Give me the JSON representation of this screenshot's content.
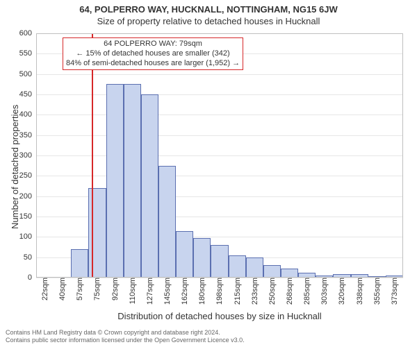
{
  "header": {
    "line1": "64, POLPERRO WAY, HUCKNALL, NOTTINGHAM, NG15 6JW",
    "line2": "Size of property relative to detached houses in Hucknall",
    "line1_fontsize": 13,
    "line2_fontsize": 13,
    "color": "#333333"
  },
  "chart": {
    "type": "histogram",
    "ylim": [
      0,
      600
    ],
    "yticks": [
      0,
      50,
      100,
      150,
      200,
      250,
      300,
      350,
      400,
      450,
      500,
      550,
      600
    ],
    "xticks": [
      "22sqm",
      "40sqm",
      "57sqm",
      "75sqm",
      "92sqm",
      "110sqm",
      "127sqm",
      "145sqm",
      "162sqm",
      "180sqm",
      "198sqm",
      "215sqm",
      "233sqm",
      "250sqm",
      "268sqm",
      "285sqm",
      "303sqm",
      "320sqm",
      "338sqm",
      "355sqm",
      "373sqm"
    ],
    "x_range": 21,
    "bar_count": 21,
    "bars": [
      0,
      0,
      70,
      220,
      475,
      476,
      450,
      275,
      115,
      97,
      80,
      55,
      50,
      30,
      22,
      12,
      5,
      8,
      8,
      3,
      5
    ],
    "marker_pos": 3.23,
    "bar_fill": "#c8d4ee",
    "bar_border": "#5b6fb0",
    "grid_color": "#e6e6e6",
    "marker_color": "#d62728",
    "background": "#ffffff",
    "tick_fontsize": 11,
    "label_fontsize": 13,
    "ylabel": "Number of detached properties",
    "xlabel": "Distribution of detached houses by size in Hucknall"
  },
  "annotation": {
    "line1": "64 POLPERRO WAY: 79sqm",
    "line2": "← 15% of detached houses are smaller (342)",
    "line3": "84% of semi-detached houses are larger (1,952) →",
    "border_color": "#d62728",
    "fontsize": 11
  },
  "footer": {
    "line1": "Contains HM Land Registry data © Crown copyright and database right 2024.",
    "line2": "Contains public sector information licensed under the Open Government Licence v3.0.",
    "color": "#666666",
    "fontsize": 9
  }
}
